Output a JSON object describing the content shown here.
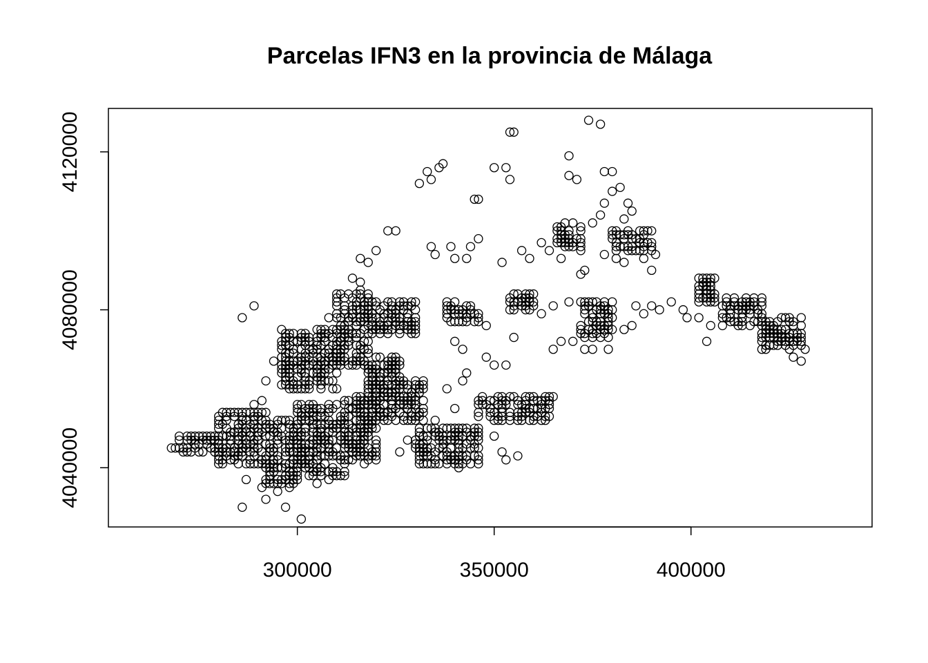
{
  "chart_data": {
    "type": "scatter",
    "title": "Parcelas IFN3 en la provincia de Málaga",
    "xlabel": "",
    "ylabel": "",
    "xlim": [
      252000,
      446000
    ],
    "ylim": [
      4025000,
      4131000
    ],
    "x_ticks": [
      300000,
      350000,
      400000
    ],
    "x_tick_labels": [
      "300000",
      "350000",
      "400000"
    ],
    "y_ticks": [
      4040000,
      4080000,
      4120000
    ],
    "y_tick_labels": [
      "4040000",
      "4080000",
      "4120000"
    ],
    "marker": "open-circle",
    "grid": false,
    "legend": "none",
    "colors": {
      "points": "#000000",
      "background": "#ffffff"
    },
    "regions": [
      {
        "x": [
          268000,
          280000
        ],
        "y": [
          4044000,
          4048000
        ],
        "step": 1000
      },
      {
        "x": [
          280000,
          292000
        ],
        "y": [
          4041000,
          4054000
        ],
        "step": 1000
      },
      {
        "x": [
          292000,
          300000
        ],
        "y": [
          4036000,
          4052000
        ],
        "step": 1000
      },
      {
        "x": [
          300000,
          312000
        ],
        "y": [
          4038000,
          4056000
        ],
        "step": 1000
      },
      {
        "x": [
          312000,
          320000
        ],
        "y": [
          4042000,
          4058000
        ],
        "step": 1000
      },
      {
        "x": [
          318000,
          326000
        ],
        "y": [
          4058000,
          4068000
        ],
        "step": 1000
      },
      {
        "x": [
          320000,
          332000
        ],
        "y": [
          4052000,
          4062000
        ],
        "step": 1000
      },
      {
        "x": [
          318000,
          330000
        ],
        "y": [
          4074000,
          4082000
        ],
        "step": 1000
      },
      {
        "x": [
          330000,
          346000
        ],
        "y": [
          4041000,
          4050000
        ],
        "step": 1000
      },
      {
        "x": [
          338000,
          346000
        ],
        "y": [
          4077000,
          4082000
        ],
        "step": 1000
      },
      {
        "x": [
          346000,
          364000
        ],
        "y": [
          4052000,
          4058000
        ],
        "step": 1000
      },
      {
        "x": [
          354000,
          360000
        ],
        "y": [
          4080000,
          4084000
        ],
        "step": 1000
      },
      {
        "x": [
          366000,
          372000
        ],
        "y": [
          4096000,
          4102000
        ],
        "step": 1000
      },
      {
        "x": [
          372000,
          380000
        ],
        "y": [
          4073000,
          4082000
        ],
        "step": 1000
      },
      {
        "x": [
          380000,
          390000
        ],
        "y": [
          4095000,
          4100000
        ],
        "step": 1000
      },
      {
        "x": [
          402000,
          406000
        ],
        "y": [
          4082000,
          4088000
        ],
        "step": 1000
      },
      {
        "x": [
          408000,
          418000
        ],
        "y": [
          4076000,
          4083000
        ],
        "step": 1000
      },
      {
        "x": [
          418000,
          428000
        ],
        "y": [
          4070000,
          4078000
        ],
        "step": 1000
      },
      {
        "x": [
          296000,
          310000
        ],
        "y": [
          4060000,
          4075000
        ],
        "step": 1000
      },
      {
        "x": [
          310000,
          318000
        ],
        "y": [
          4066000,
          4084000
        ],
        "step": 1000
      }
    ],
    "points": [
      [
        286000,
        4030000
      ],
      [
        297000,
        4030000
      ],
      [
        301000,
        4027000
      ],
      [
        291000,
        4035000
      ],
      [
        292000,
        4032000
      ],
      [
        302000,
        4040000
      ],
      [
        303000,
        4040000
      ],
      [
        302000,
        4041000
      ],
      [
        303000,
        4041000
      ],
      [
        323000,
        4066000
      ],
      [
        324000,
        4066000
      ],
      [
        323000,
        4067000
      ],
      [
        324000,
        4067000
      ],
      [
        322000,
        4064000
      ],
      [
        331000,
        4112000
      ],
      [
        334000,
        4113000
      ],
      [
        333000,
        4115000
      ],
      [
        336000,
        4116000
      ],
      [
        337000,
        4117000
      ],
      [
        354000,
        4125000
      ],
      [
        355000,
        4125000
      ],
      [
        350000,
        4116000
      ],
      [
        353000,
        4116000
      ],
      [
        354000,
        4113000
      ],
      [
        374000,
        4128000
      ],
      [
        377000,
        4127000
      ],
      [
        369000,
        4119000
      ],
      [
        369000,
        4114000
      ],
      [
        371000,
        4113000
      ],
      [
        378000,
        4115000
      ],
      [
        380000,
        4115000
      ],
      [
        382000,
        4111000
      ],
      [
        380000,
        4110000
      ],
      [
        378000,
        4107000
      ],
      [
        384000,
        4107000
      ],
      [
        385000,
        4105000
      ],
      [
        377000,
        4104000
      ],
      [
        375000,
        4102000
      ],
      [
        383000,
        4103000
      ],
      [
        345000,
        4108000
      ],
      [
        346000,
        4108000
      ],
      [
        323000,
        4100000
      ],
      [
        325000,
        4100000
      ],
      [
        320000,
        4095000
      ],
      [
        316000,
        4093000
      ],
      [
        318000,
        4092000
      ],
      [
        314000,
        4088000
      ],
      [
        316000,
        4087000
      ],
      [
        316000,
        4085000
      ],
      [
        334000,
        4096000
      ],
      [
        335000,
        4094000
      ],
      [
        339000,
        4096000
      ],
      [
        340000,
        4093000
      ],
      [
        344000,
        4096000
      ],
      [
        343000,
        4093000
      ],
      [
        346000,
        4098000
      ],
      [
        352000,
        4092000
      ],
      [
        357000,
        4095000
      ],
      [
        359000,
        4093000
      ],
      [
        362000,
        4097000
      ],
      [
        364000,
        4095000
      ],
      [
        367000,
        4093000
      ],
      [
        372000,
        4095000
      ],
      [
        373000,
        4090000
      ],
      [
        369000,
        4082000
      ],
      [
        365000,
        4081000
      ],
      [
        362000,
        4079000
      ],
      [
        359000,
        4080000
      ],
      [
        372000,
        4089000
      ],
      [
        378000,
        4094000
      ],
      [
        381000,
        4093000
      ],
      [
        383000,
        4092000
      ],
      [
        386000,
        4098000
      ],
      [
        388000,
        4093000
      ],
      [
        391000,
        4094000
      ],
      [
        390000,
        4090000
      ],
      [
        386000,
        4081000
      ],
      [
        388000,
        4079000
      ],
      [
        390000,
        4081000
      ],
      [
        392000,
        4080000
      ],
      [
        395000,
        4082000
      ],
      [
        398000,
        4080000
      ],
      [
        399000,
        4078000
      ],
      [
        402000,
        4078000
      ],
      [
        405000,
        4076000
      ],
      [
        404000,
        4072000
      ],
      [
        348000,
        4068000
      ],
      [
        350000,
        4066000
      ],
      [
        353000,
        4066000
      ],
      [
        348000,
        4076000
      ],
      [
        355000,
        4073000
      ],
      [
        342000,
        4070000
      ],
      [
        340000,
        4072000
      ],
      [
        365000,
        4070000
      ],
      [
        367000,
        4072000
      ],
      [
        370000,
        4072000
      ],
      [
        373000,
        4070000
      ],
      [
        375000,
        4070000
      ],
      [
        379000,
        4070000
      ],
      [
        383000,
        4075000
      ],
      [
        385000,
        4076000
      ],
      [
        353000,
        4042000
      ],
      [
        352000,
        4044000
      ],
      [
        356000,
        4043000
      ],
      [
        350000,
        4048000
      ],
      [
        341000,
        4040000
      ],
      [
        338000,
        4043000
      ],
      [
        345000,
        4043000
      ],
      [
        342000,
        4062000
      ],
      [
        343000,
        4064000
      ],
      [
        360000,
        4058000
      ],
      [
        363000,
        4057000
      ],
      [
        365000,
        4058000
      ],
      [
        289000,
        4056000
      ],
      [
        291000,
        4057000
      ],
      [
        292000,
        4062000
      ],
      [
        294000,
        4067000
      ],
      [
        296000,
        4070000
      ],
      [
        299000,
        4069000
      ],
      [
        302000,
        4073000
      ],
      [
        305000,
        4075000
      ],
      [
        308000,
        4078000
      ],
      [
        312000,
        4081000
      ],
      [
        286000,
        4078000
      ],
      [
        289000,
        4081000
      ],
      [
        338000,
        4060000
      ],
      [
        340000,
        4055000
      ],
      [
        335000,
        4052000
      ],
      [
        333000,
        4048000
      ],
      [
        328000,
        4047000
      ],
      [
        326000,
        4044000
      ],
      [
        320000,
        4044000
      ],
      [
        317000,
        4041000
      ],
      [
        312000,
        4039000
      ],
      [
        308000,
        4037000
      ],
      [
        305000,
        4036000
      ],
      [
        298000,
        4035000
      ],
      [
        295000,
        4034000
      ],
      [
        287000,
        4037000
      ],
      [
        428000,
        4067000
      ],
      [
        429000,
        4070000
      ],
      [
        426000,
        4068000
      ],
      [
        428000,
        4072000
      ],
      [
        426000,
        4076000
      ]
    ]
  }
}
